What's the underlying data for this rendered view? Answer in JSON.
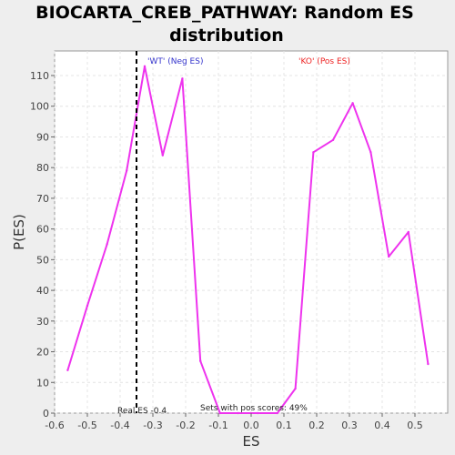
{
  "chart_data": {
    "type": "line",
    "title_lines": [
      "BIOCARTA_CREB_PATHWAY: Random ES",
      "distribution"
    ],
    "xlabel": "ES",
    "ylabel": "P(ES)",
    "xlim": [
      -0.6,
      0.6
    ],
    "ylim": [
      0,
      118
    ],
    "xticks": [
      -0.6,
      -0.5,
      -0.4,
      -0.3,
      -0.2,
      -0.1,
      0.0,
      0.1,
      0.2,
      0.3,
      0.4,
      0.5
    ],
    "xtick_labels": [
      "-0.6",
      "-0.5",
      "-0.4",
      "-0.3",
      "-0.2",
      "-0.1",
      "0.0",
      "0.1",
      "0.2",
      "0.3",
      "0.4",
      "0.5"
    ],
    "yticks": [
      0,
      10,
      20,
      30,
      40,
      50,
      60,
      70,
      80,
      90,
      100,
      110
    ],
    "ytick_labels": [
      "0",
      "10",
      "20",
      "30",
      "40",
      "50",
      "60",
      "70",
      "80",
      "90",
      "100",
      "110"
    ],
    "grid": true,
    "series": [
      {
        "color": "#ee33ee",
        "x": [
          -0.56,
          -0.5,
          -0.44,
          -0.38,
          -0.325,
          -0.27,
          -0.21,
          -0.155,
          -0.095,
          -0.04,
          0.02,
          0.08,
          0.135,
          0.19,
          0.25,
          0.31,
          0.365,
          0.42,
          0.48,
          0.54
        ],
        "y": [
          14,
          35,
          55,
          79,
          113,
          84,
          109,
          17,
          0,
          0,
          0,
          0,
          8,
          85,
          89,
          101,
          85,
          51,
          59,
          16
        ]
      }
    ],
    "real_es": -0.35,
    "annotations": {
      "wt_label": "'WT' (Neg ES)",
      "ko_label": "'KO' (Pos ES)",
      "real_es_label": "Real ES -0.4",
      "pos_scores_label": "Sets with pos scores: 49%"
    },
    "colors": {
      "wt": "#3333cc",
      "ko": "#ee2222",
      "plot_bg": "#ffffff",
      "page_bg": "#eeeeee",
      "grid": "#e4e4e4"
    }
  }
}
